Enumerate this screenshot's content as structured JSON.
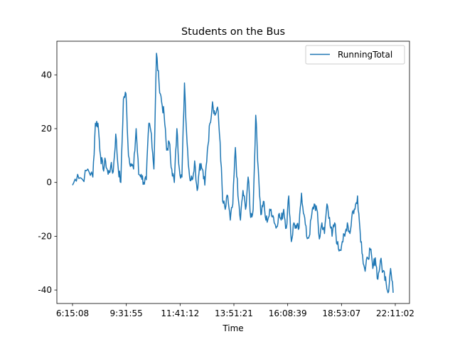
{
  "chart_data": {
    "type": "line",
    "title": "Students on the Bus",
    "xlabel": "Time",
    "ylabel": "",
    "x_tick_labels": [
      "6:15:08",
      "9:31:55",
      "11:41:12",
      "13:51:21",
      "16:08:39",
      "18:53:07",
      "22:11:02"
    ],
    "y_ticks": [
      -40,
      -20,
      0,
      20,
      40
    ],
    "ylim": [
      -45,
      52.5
    ],
    "grid": false,
    "legend_position": "top-right",
    "series": [
      {
        "name": "RunningTotal",
        "color": "#1f77b4",
        "anchors": [
          [
            0,
            -1
          ],
          [
            2,
            3
          ],
          [
            4,
            1
          ],
          [
            6,
            5
          ],
          [
            8,
            2
          ],
          [
            9,
            22
          ],
          [
            10,
            22
          ],
          [
            11,
            10
          ],
          [
            12,
            5
          ],
          [
            13,
            8
          ],
          [
            14,
            3
          ],
          [
            15,
            6
          ],
          [
            16,
            4
          ],
          [
            17,
            18
          ],
          [
            18,
            5
          ],
          [
            19,
            0
          ],
          [
            20,
            31
          ],
          [
            21,
            33
          ],
          [
            22,
            10
          ],
          [
            23,
            7
          ],
          [
            24,
            5
          ],
          [
            25,
            20
          ],
          [
            26,
            3
          ],
          [
            27,
            3
          ],
          [
            28,
            0
          ],
          [
            29,
            1
          ],
          [
            30,
            22
          ],
          [
            31,
            18
          ],
          [
            32,
            5
          ],
          [
            33,
            48
          ],
          [
            34,
            37
          ],
          [
            35,
            30
          ],
          [
            36,
            25
          ],
          [
            37,
            12
          ],
          [
            38,
            15
          ],
          [
            39,
            5
          ],
          [
            40,
            0
          ],
          [
            41,
            20
          ],
          [
            42,
            5
          ],
          [
            43,
            2
          ],
          [
            44,
            37
          ],
          [
            45,
            15
          ],
          [
            46,
            2
          ],
          [
            47,
            1
          ],
          [
            48,
            8
          ],
          [
            49,
            -3
          ],
          [
            50,
            7
          ],
          [
            51,
            5
          ],
          [
            52,
            -1
          ],
          [
            53,
            12
          ],
          [
            54,
            22
          ],
          [
            55,
            30
          ],
          [
            56,
            25
          ],
          [
            57,
            28
          ],
          [
            58,
            15
          ],
          [
            59,
            -7
          ],
          [
            60,
            -10
          ],
          [
            61,
            -5
          ],
          [
            62,
            -14
          ],
          [
            63,
            -8
          ],
          [
            64,
            13
          ],
          [
            65,
            -5
          ],
          [
            66,
            -14
          ],
          [
            67,
            -3
          ],
          [
            68,
            -10
          ],
          [
            69,
            2
          ],
          [
            70,
            -13
          ],
          [
            71,
            -10
          ],
          [
            72,
            25
          ],
          [
            73,
            5
          ],
          [
            74,
            -12
          ],
          [
            75,
            -7
          ],
          [
            76,
            -14
          ],
          [
            77,
            -13
          ],
          [
            78,
            -10
          ],
          [
            79,
            -13
          ],
          [
            80,
            -17
          ],
          [
            81,
            -12
          ],
          [
            82,
            -14
          ],
          [
            83,
            -10
          ],
          [
            84,
            -17
          ],
          [
            85,
            -5
          ],
          [
            86,
            -22
          ],
          [
            87,
            -15
          ],
          [
            88,
            -17
          ],
          [
            89,
            -17
          ],
          [
            90,
            -4
          ],
          [
            91,
            -12
          ],
          [
            92,
            -20
          ],
          [
            93,
            -20
          ],
          [
            94,
            -12
          ],
          [
            95,
            -8
          ],
          [
            96,
            -10
          ],
          [
            97,
            -21
          ],
          [
            98,
            -15
          ],
          [
            99,
            -19
          ],
          [
            100,
            -8
          ],
          [
            101,
            -13
          ],
          [
            102,
            -20
          ],
          [
            103,
            -15
          ],
          [
            104,
            -23
          ],
          [
            105,
            -25
          ],
          [
            106,
            -22
          ],
          [
            107,
            -20
          ],
          [
            108,
            -15
          ],
          [
            109,
            -19
          ],
          [
            110,
            -11
          ],
          [
            111,
            -10
          ],
          [
            112,
            -5
          ],
          [
            113,
            -18
          ],
          [
            114,
            -27
          ],
          [
            115,
            -33
          ],
          [
            116,
            -28
          ],
          [
            117,
            -25
          ],
          [
            118,
            -32
          ],
          [
            119,
            -28
          ],
          [
            120,
            -36
          ],
          [
            121,
            -29
          ],
          [
            122,
            -33
          ],
          [
            123,
            -35
          ],
          [
            124,
            -41
          ],
          [
            125,
            -32
          ],
          [
            126,
            -41
          ]
        ]
      }
    ]
  }
}
